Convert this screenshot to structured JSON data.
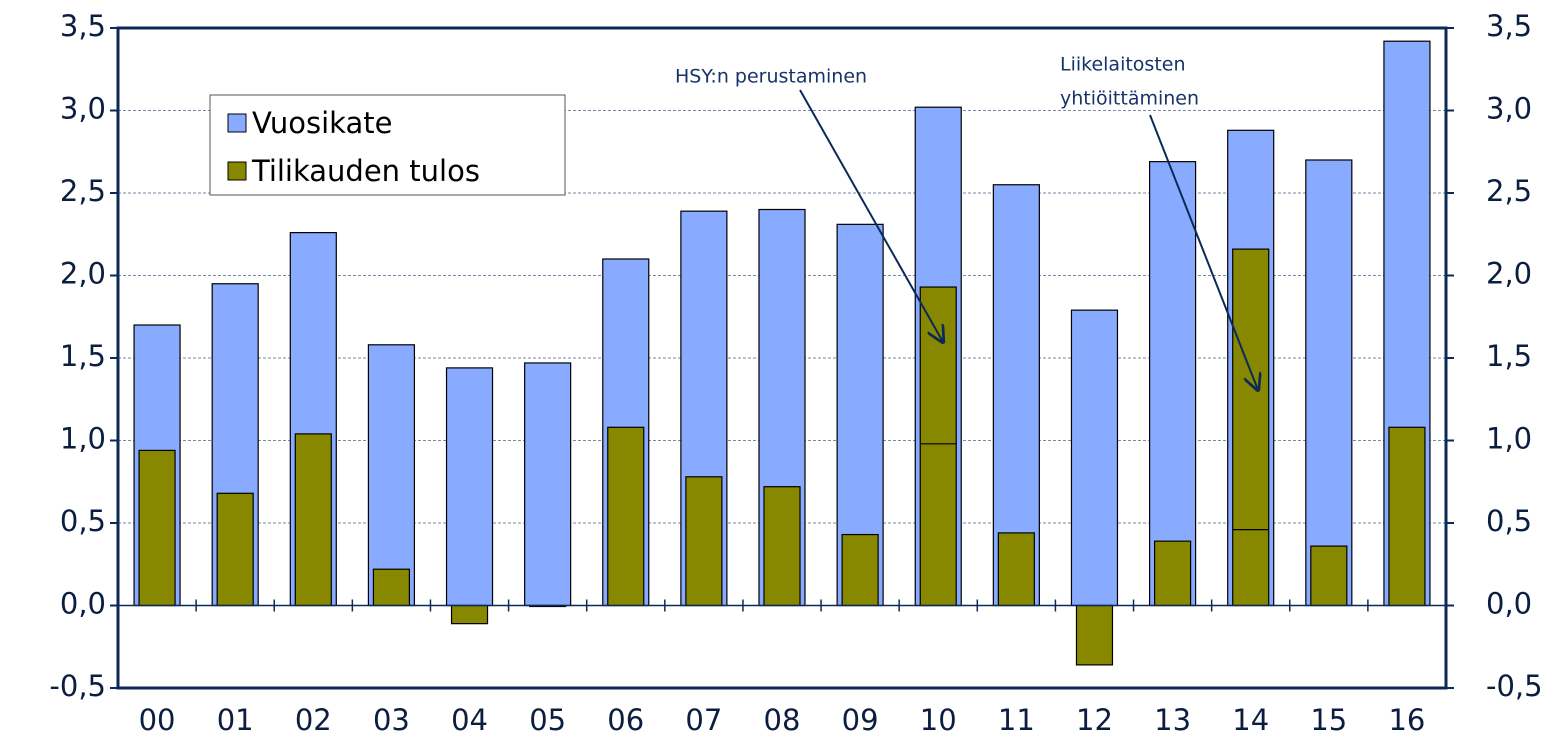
{
  "chart_data": {
    "type": "bar",
    "categories": [
      "00",
      "01",
      "02",
      "03",
      "04",
      "05",
      "06",
      "07",
      "08",
      "09",
      "10",
      "11",
      "12",
      "13",
      "14",
      "15",
      "16"
    ],
    "series": [
      {
        "name": "Vuosikate",
        "color": "#88aaff",
        "values": [
          1.7,
          1.95,
          2.26,
          1.58,
          1.44,
          1.47,
          2.1,
          2.39,
          2.4,
          2.31,
          3.02,
          2.55,
          1.79,
          2.69,
          2.88,
          2.7,
          3.42
        ]
      },
      {
        "name": "Tilikauden tulos",
        "color": "#878700",
        "values": [
          0.94,
          0.68,
          1.04,
          0.22,
          -0.11,
          0.0,
          1.08,
          0.78,
          0.72,
          0.43,
          1.93,
          0.44,
          -0.36,
          0.39,
          2.16,
          0.36,
          1.08
        ]
      },
      {
        "color": "#000000",
        "values": [
          null,
          null,
          null,
          null,
          null,
          null,
          null,
          null,
          null,
          null,
          0.98,
          null,
          null,
          null,
          0.46,
          null,
          null
        ]
      }
    ],
    "ylim": [
      -0.5,
      3.5
    ],
    "yticks": [
      {
        "value": -0.5,
        "label": "-0,5"
      },
      {
        "value": 0,
        "label": "0,0"
      },
      {
        "value": 0.5,
        "label": "0,5"
      },
      {
        "value": 1,
        "label": "1,0"
      },
      {
        "value": 1.5,
        "label": "1,5"
      },
      {
        "value": 2,
        "label": "2,0"
      },
      {
        "value": 2.5,
        "label": "2,5"
      },
      {
        "value": 3,
        "label": "3,0"
      },
      {
        "value": 3.5,
        "label": "3,5"
      }
    ],
    "y2lim": [
      -0.5,
      3.5
    ],
    "y2ticks": [
      {
        "value": -0.5,
        "label": "-0,5"
      },
      {
        "value": 0,
        "label": "0,0"
      },
      {
        "value": 0.5,
        "label": "0,5"
      },
      {
        "value": 1,
        "label": "1,0"
      },
      {
        "value": 1.5,
        "label": "1,5"
      },
      {
        "value": 2,
        "label": "2,0"
      },
      {
        "value": 2.5,
        "label": "2,5"
      },
      {
        "value": 3,
        "label": "3,0"
      },
      {
        "value": 3.5,
        "label": "3,5"
      }
    ],
    "grid": true,
    "legend": "upper left",
    "annotations": [
      [
        "HSY:n perustaminen"
      ],
      [
        "Liikelaitosten",
        "yhtiöittäminen"
      ]
    ]
  }
}
